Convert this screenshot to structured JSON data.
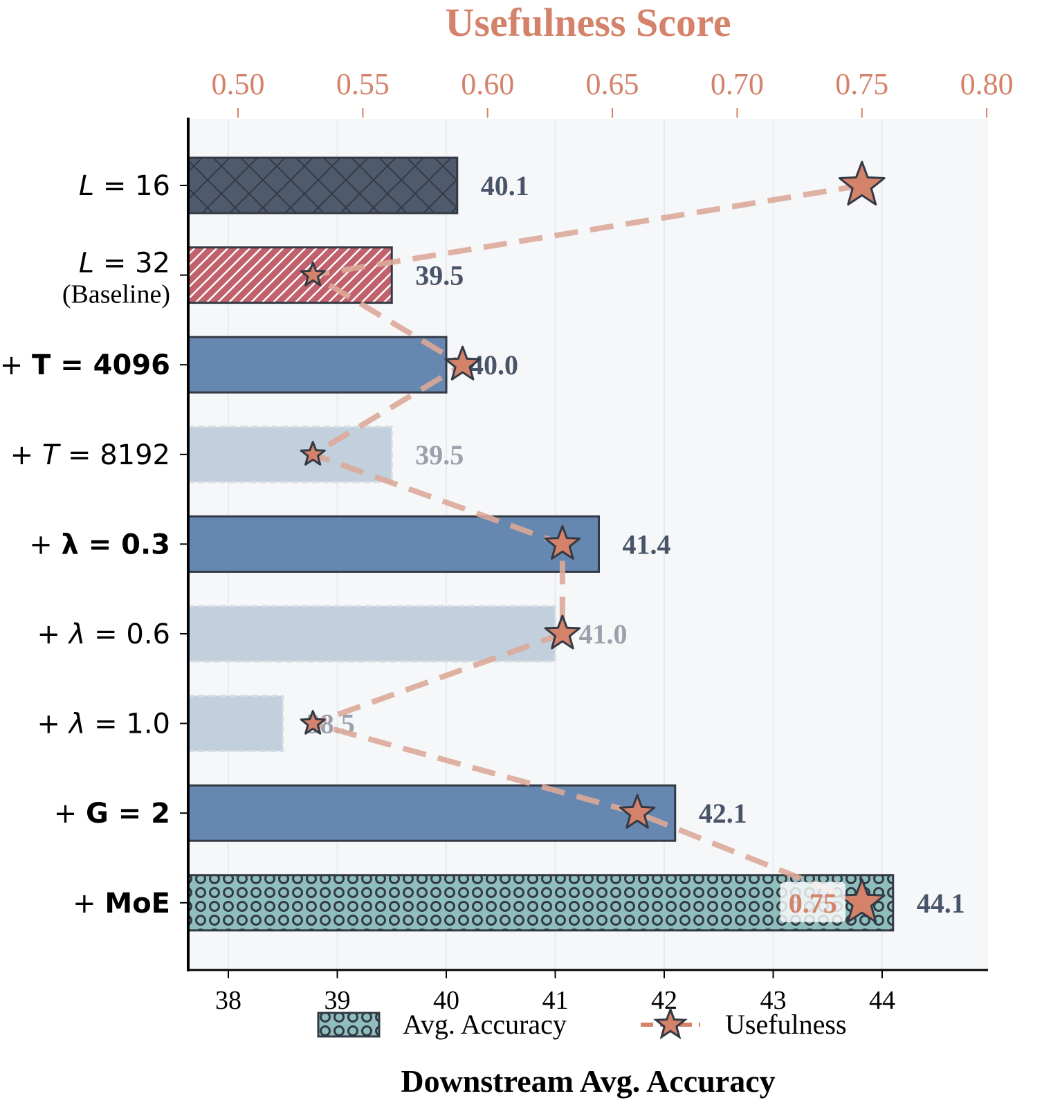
{
  "chart_data": {
    "type": "bar",
    "orientation": "horizontal",
    "title_top_axis": "Usefulness Score",
    "xlabel": "Downstream Avg. Accuracy",
    "ylabel": "",
    "categories": [
      {
        "prefix": "",
        "label": "L = 16",
        "sub": "",
        "style": "italic-var"
      },
      {
        "prefix": "",
        "label": "L = 32",
        "sub": "(Baseline)",
        "style": "italic-var"
      },
      {
        "prefix": "+ ",
        "label": "T = 4096",
        "sub": "",
        "style": "bold"
      },
      {
        "prefix": "+ ",
        "label": "T = 8192",
        "sub": "",
        "style": "italic-var"
      },
      {
        "prefix": "+ ",
        "label": "λ = 0.3",
        "sub": "",
        "style": "bold"
      },
      {
        "prefix": "+ ",
        "label": "λ = 0.6",
        "sub": "",
        "style": "italic-var"
      },
      {
        "prefix": "+ ",
        "label": "λ = 1.0",
        "sub": "",
        "style": "italic-var"
      },
      {
        "prefix": "+ ",
        "label": "G = 2",
        "sub": "",
        "style": "bold"
      },
      {
        "prefix": "+ ",
        "label": "MoE",
        "sub": "",
        "style": "bold"
      }
    ],
    "series": [
      {
        "name": "Avg. Accuracy",
        "axis": "bottom",
        "values": [
          40.1,
          39.5,
          40.0,
          39.5,
          41.4,
          41.0,
          38.5,
          42.1,
          44.1
        ],
        "value_labels": [
          "40.1",
          "39.5",
          "40.0",
          "39.5",
          "41.4",
          "41.0",
          "38.5",
          "42.1",
          "44.1"
        ],
        "bar_styles": [
          "crosshatch-dark",
          "diagonal-red",
          "solid-blue",
          "faded",
          "solid-blue",
          "faded",
          "faded",
          "solid-blue",
          "circles-teal"
        ]
      },
      {
        "name": "Usefulness",
        "axis": "top",
        "type": "line",
        "line_style": "dashed",
        "marker": "star",
        "values": [
          0.75,
          0.53,
          0.59,
          0.53,
          0.63,
          0.63,
          0.53,
          0.66,
          0.75
        ],
        "marker_sizes": [
          "large",
          "small",
          "medium",
          "small",
          "medium",
          "medium",
          "small",
          "medium",
          "large"
        ]
      }
    ],
    "annotations": [
      {
        "text": "0.75",
        "category_index": 8,
        "series": "Usefulness"
      }
    ],
    "x_bottom": {
      "lim": [
        37.63,
        44.95
      ],
      "ticks": [
        38,
        39,
        40,
        41,
        42,
        43,
        44
      ],
      "tick_labels": [
        "38",
        "39",
        "40",
        "41",
        "42",
        "43",
        "44"
      ]
    },
    "x_top": {
      "lim": [
        0.48,
        0.8
      ],
      "ticks": [
        0.5,
        0.55,
        0.6,
        0.65,
        0.7,
        0.75,
        0.8
      ],
      "tick_labels": [
        "0.50",
        "0.55",
        "0.60",
        "0.65",
        "0.70",
        "0.75",
        "0.80"
      ]
    },
    "grid": true,
    "legend": {
      "placement": "bottom-center",
      "entries": [
        "Avg. Accuracy",
        "Usefulness"
      ]
    },
    "colors": {
      "usefulness": "#d4826a",
      "line": "#dba898",
      "dark_bar": "#4f5a6d",
      "red_bar": "#c0616b",
      "blue_bar": "#6687b0",
      "faded_bar": "#c2cfdd",
      "teal_bar": "#8fbfbc",
      "edge": "#333a45",
      "label_dark": "#4a5468",
      "label_faded": "#9aa1ab",
      "plot_bg": "#f5f7f9"
    }
  }
}
